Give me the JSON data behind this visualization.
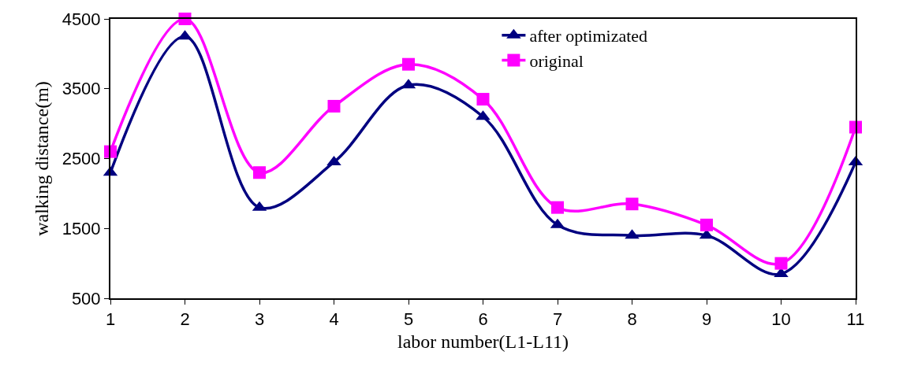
{
  "chart_data": {
    "type": "line",
    "xlabel": "labor number(L1-L11)",
    "ylabel": "walking distance(m)",
    "x": [
      1,
      2,
      3,
      4,
      5,
      6,
      7,
      8,
      9,
      10,
      11
    ],
    "xlim": [
      1,
      11
    ],
    "xticks": [
      1,
      2,
      3,
      4,
      5,
      6,
      7,
      8,
      9,
      10,
      11
    ],
    "ylim": [
      500,
      4500
    ],
    "yticks": [
      500,
      1500,
      2500,
      3500,
      4500
    ],
    "legend": "top right",
    "line_style": "solid",
    "series": [
      {
        "name": "after optimizated",
        "color": "#000080",
        "marker": "triangle",
        "values": [
          2300,
          4250,
          1800,
          2450,
          3550,
          3100,
          1550,
          1400,
          1400,
          850,
          2450
        ]
      },
      {
        "name": "original",
        "color": "#ff00ff",
        "marker": "square",
        "values": [
          2600,
          4500,
          2300,
          3250,
          3850,
          3350,
          1800,
          1850,
          1550,
          1000,
          2950
        ]
      }
    ]
  }
}
